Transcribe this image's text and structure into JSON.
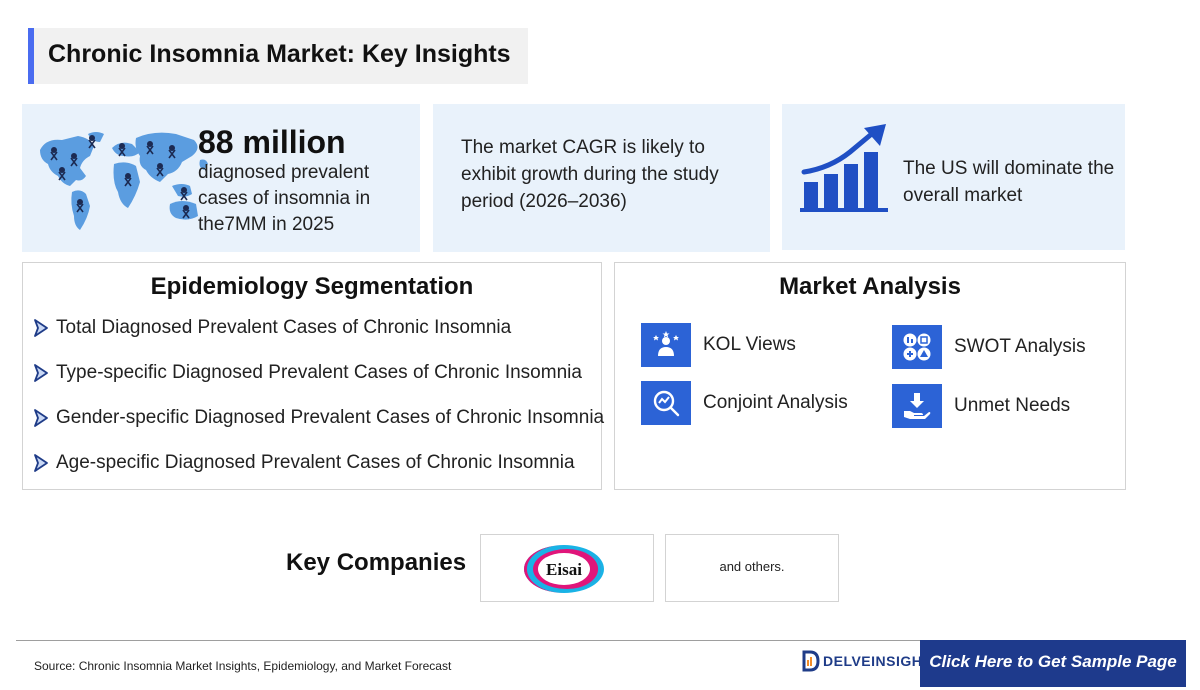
{
  "header": {
    "title": "Chronic Insomnia Market: Key Insights"
  },
  "insights": {
    "prevalence": {
      "number": "88 million",
      "text": "diagnosed prevalent cases of insomnia in the7MM in 2025",
      "icon": "world-map-icon"
    },
    "cagr": {
      "text": "The market CAGR is likely to exhibit growth during the study period (2026–2036)"
    },
    "dominance": {
      "text": "The US will dominate the overall market",
      "icon": "growth-chart-icon"
    }
  },
  "epidemiology": {
    "title": "Epidemiology Segmentation",
    "items": [
      "Total Diagnosed Prevalent Cases of Chronic Insomnia",
      "Type-specific Diagnosed Prevalent Cases of Chronic Insomnia",
      "Gender-specific Diagnosed Prevalent Cases of Chronic Insomnia",
      "Age-specific Diagnosed Prevalent Cases of Chronic Insomnia"
    ]
  },
  "market_analysis": {
    "title": "Market Analysis",
    "items": [
      {
        "label": "KOL Views",
        "icon": "kol-icon"
      },
      {
        "label": "SWOT Analysis",
        "icon": "swot-icon"
      },
      {
        "label": "Conjoint Analysis",
        "icon": "conjoint-icon"
      },
      {
        "label": "Unmet Needs",
        "icon": "unmet-needs-icon"
      }
    ]
  },
  "key_companies": {
    "label": "Key Companies",
    "logo_text": "Eisai",
    "others": "and others."
  },
  "footer": {
    "source": "Source: Chronic Insomnia Market Insights, Epidemiology, and Market Forecast",
    "brand": "DELVEINSIGHT",
    "cta": "Click Here to Get Sample Page"
  },
  "colors": {
    "accent": "#4a6cf0",
    "card_bg": "#e9f2fb",
    "icon_blue": "#2c63d6",
    "cta_bg": "#1e3a8c",
    "logo_magenta": "#e0157a",
    "logo_cyan": "#19b3e6"
  }
}
